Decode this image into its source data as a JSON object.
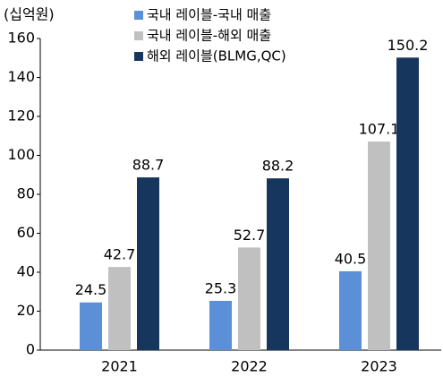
{
  "chart_data": {
    "type": "bar",
    "y_label": "(십억원)",
    "categories": [
      "2021",
      "2022",
      "2023"
    ],
    "series": [
      {
        "name": "국내 레이블-국내 매출",
        "color": "#5b8fd6",
        "values": [
          24.5,
          25.3,
          40.5
        ]
      },
      {
        "name": "국내 레이블-해외 매출",
        "color": "#c0c0c0",
        "values": [
          42.7,
          52.7,
          107.1
        ]
      },
      {
        "name": "해외 레이블(BLMG,QC)",
        "color": "#17365d",
        "values": [
          88.7,
          88.2,
          150.2
        ]
      }
    ],
    "ylim": [
      0,
      160
    ],
    "yticks": [
      0,
      20,
      40,
      60,
      80,
      100,
      120,
      140,
      160
    ],
    "grid": false
  }
}
